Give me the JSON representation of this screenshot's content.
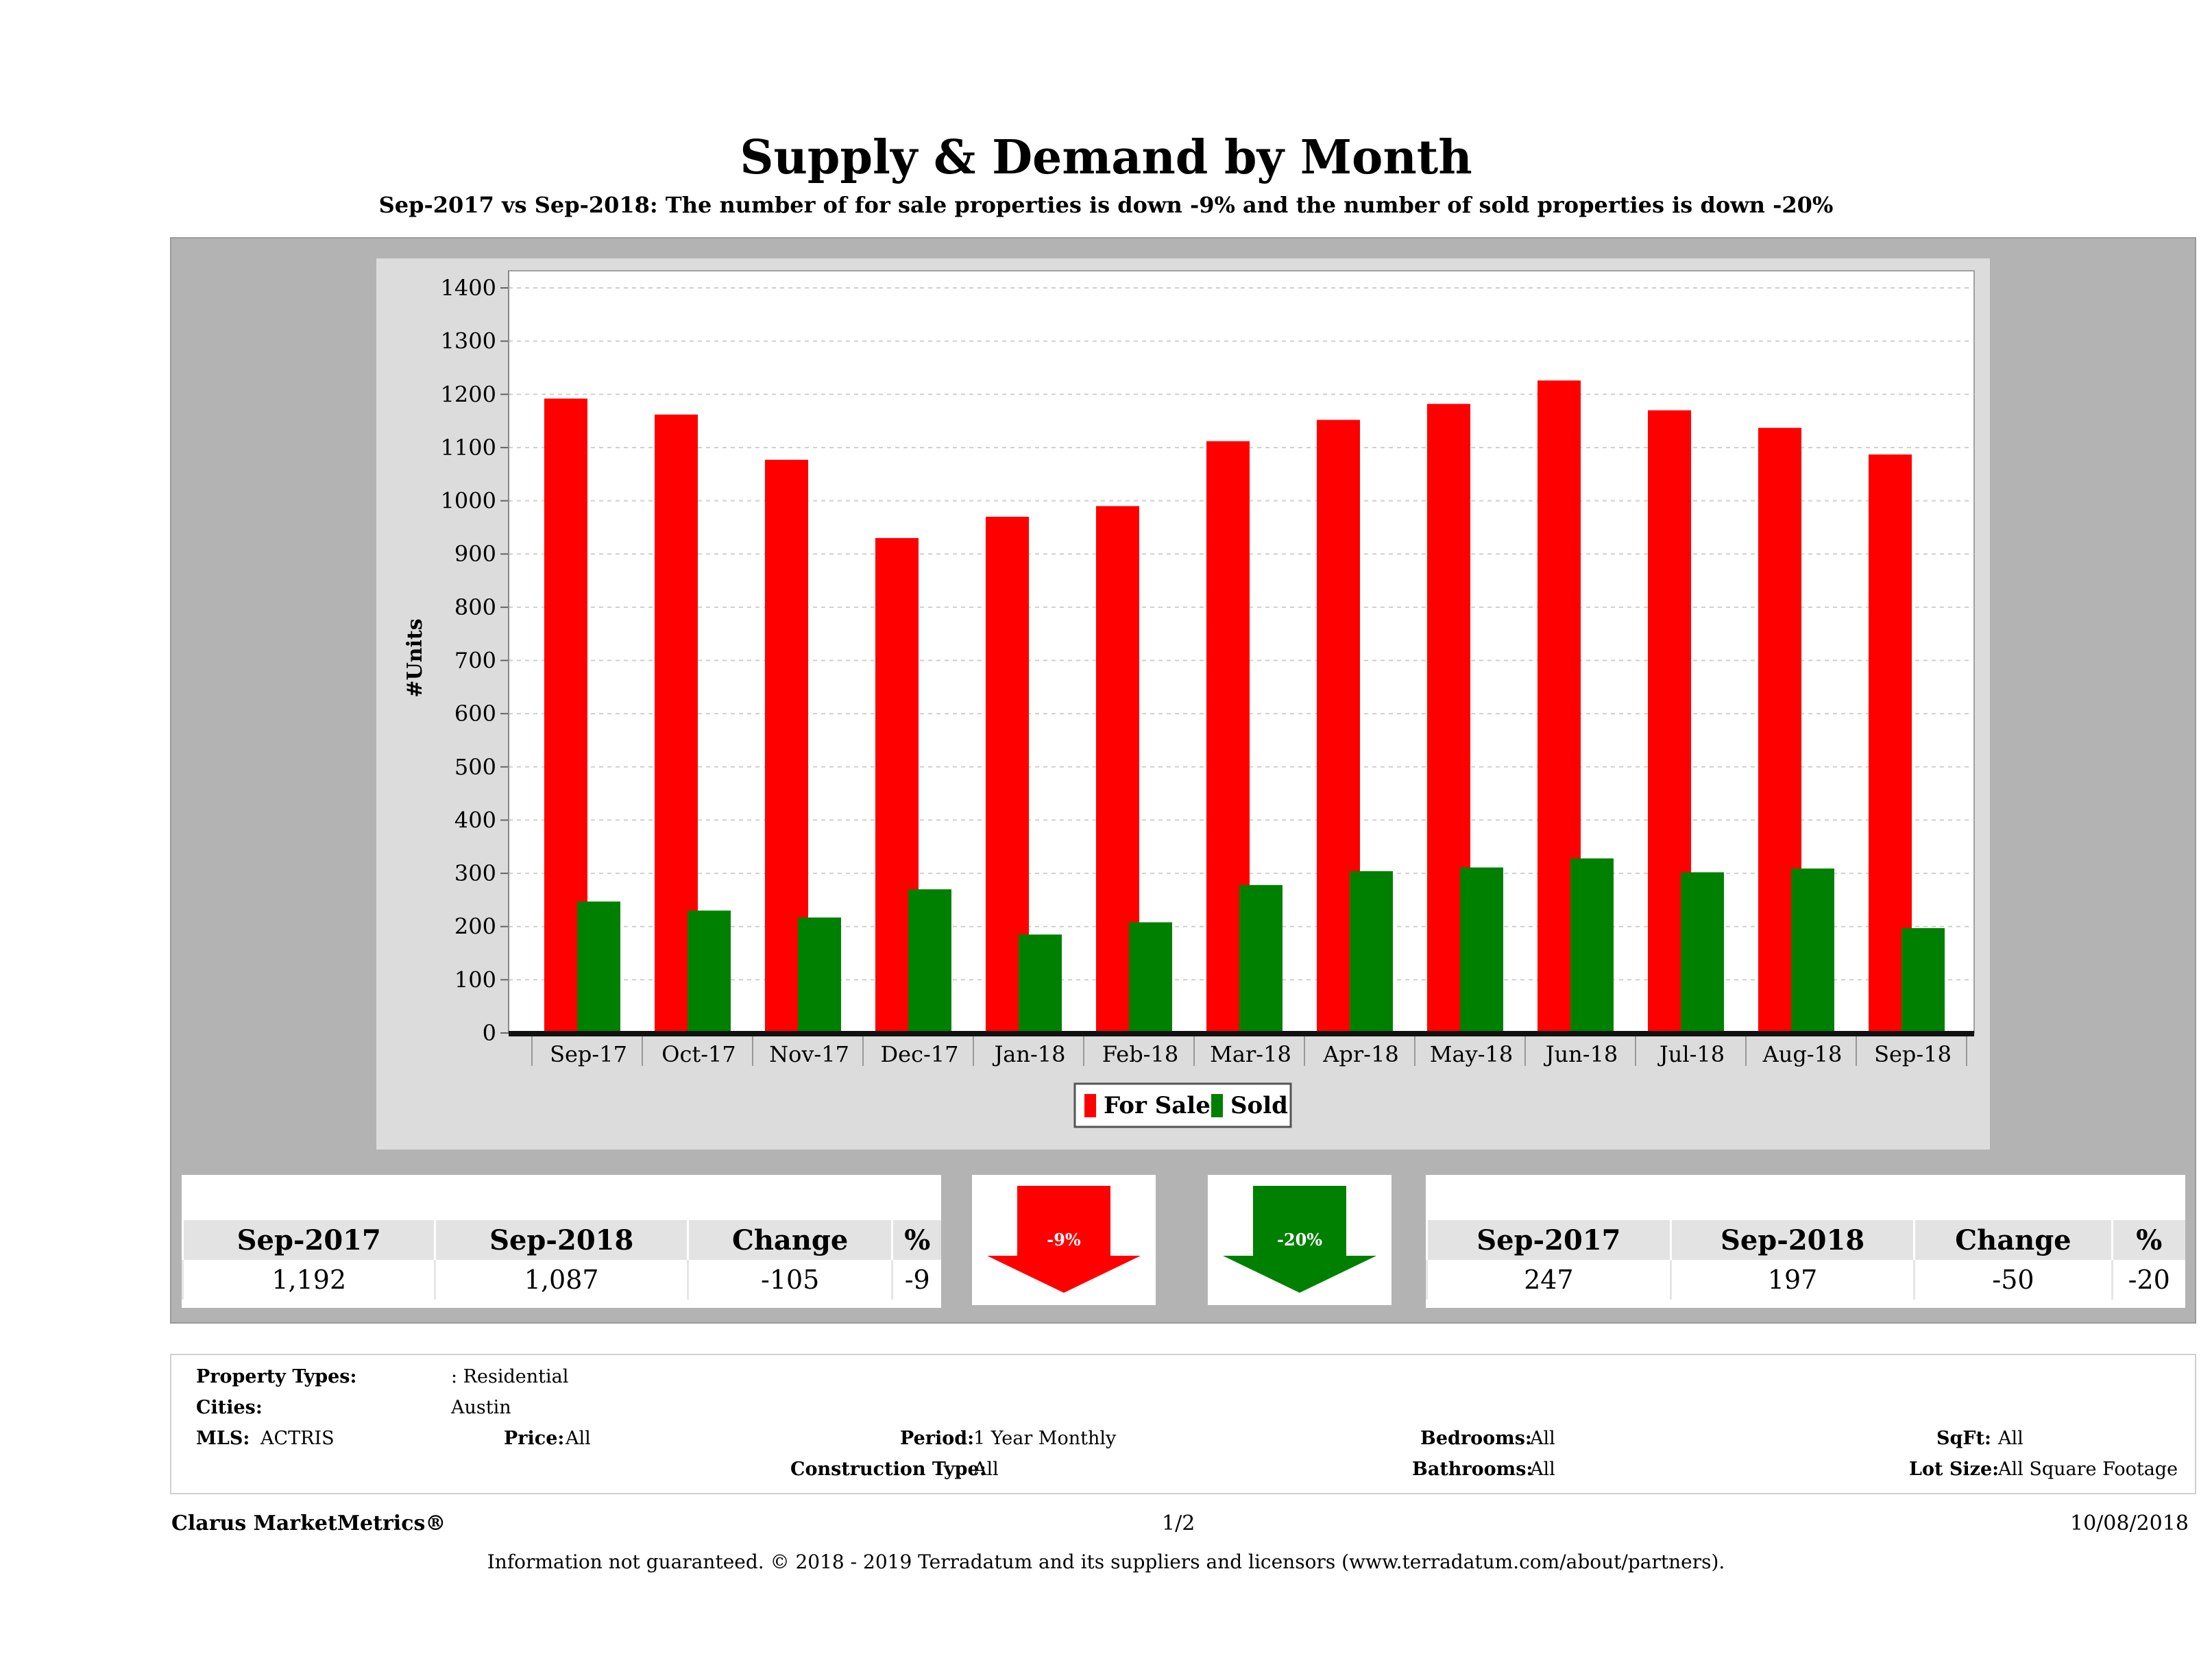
{
  "header": {
    "title": "Supply & Demand by Month",
    "subtitle": "Sep-2017 vs Sep-2018: The number of for sale properties is down -9% and the number of sold properties is down -20%"
  },
  "chart_data": {
    "type": "bar",
    "title": "Supply & Demand by Month",
    "ylabel": "#Units",
    "xlabel": "",
    "ylim": [
      0,
      1400
    ],
    "yticks": [
      0,
      100,
      200,
      300,
      400,
      500,
      600,
      700,
      800,
      900,
      1000,
      1100,
      1200,
      1300,
      1400
    ],
    "grid": true,
    "legend_position": "bottom-center",
    "categories": [
      "Sep-17",
      "Oct-17",
      "Nov-17",
      "Dec-17",
      "Jan-18",
      "Feb-18",
      "Mar-18",
      "Apr-18",
      "May-18",
      "Jun-18",
      "Jul-18",
      "Aug-18",
      "Sep-18"
    ],
    "series": [
      {
        "name": "For Sale",
        "color": "#ff0000",
        "values": [
          1192,
          1162,
          1077,
          930,
          970,
          990,
          1112,
          1152,
          1182,
          1226,
          1170,
          1137,
          1087
        ]
      },
      {
        "name": "Sold",
        "color": "#008000",
        "values": [
          247,
          230,
          217,
          270,
          185,
          208,
          278,
          304,
          311,
          328,
          302,
          309,
          197
        ]
      }
    ]
  },
  "for_sale_summary": {
    "headers": [
      "Sep-2017",
      "Sep-2018",
      "Change",
      "%"
    ],
    "values": [
      "1,192",
      "1,087",
      "-105",
      "-9"
    ],
    "arrow_label": "-9%",
    "arrow_color": "#ff0000"
  },
  "sold_summary": {
    "headers": [
      "Sep-2017",
      "Sep-2018",
      "Change",
      "%"
    ],
    "values": [
      "247",
      "197",
      "-50",
      "-20"
    ],
    "arrow_label": "-20%",
    "arrow_color": "#008000"
  },
  "info": {
    "property_types_label": "Property Types:",
    "property_types_value": ": Residential",
    "cities_label": "Cities:",
    "cities_value": "Austin",
    "mls_label": "MLS:",
    "mls_value": "ACTRIS",
    "price_label": "Price:",
    "price_value": "All",
    "period_label": "Period:",
    "period_value": "1 Year Monthly",
    "construction_label": "Construction Type:",
    "construction_value": "All",
    "bedrooms_label": "Bedrooms:",
    "bedrooms_value": "All",
    "bathrooms_label": "Bathrooms:",
    "bathrooms_value": "All",
    "sqft_label": "SqFt:",
    "sqft_value": "All",
    "lotsize_label": "Lot Size:",
    "lotsize_value": "All Square Footage"
  },
  "footer": {
    "brand": "Clarus MarketMetrics®",
    "page": "1/2",
    "date": "10/08/2018",
    "disclaimer": "Information not guaranteed. © 2018 - 2019 Terradatum and its suppliers and licensors (www.terradatum.com/about/partners)."
  }
}
